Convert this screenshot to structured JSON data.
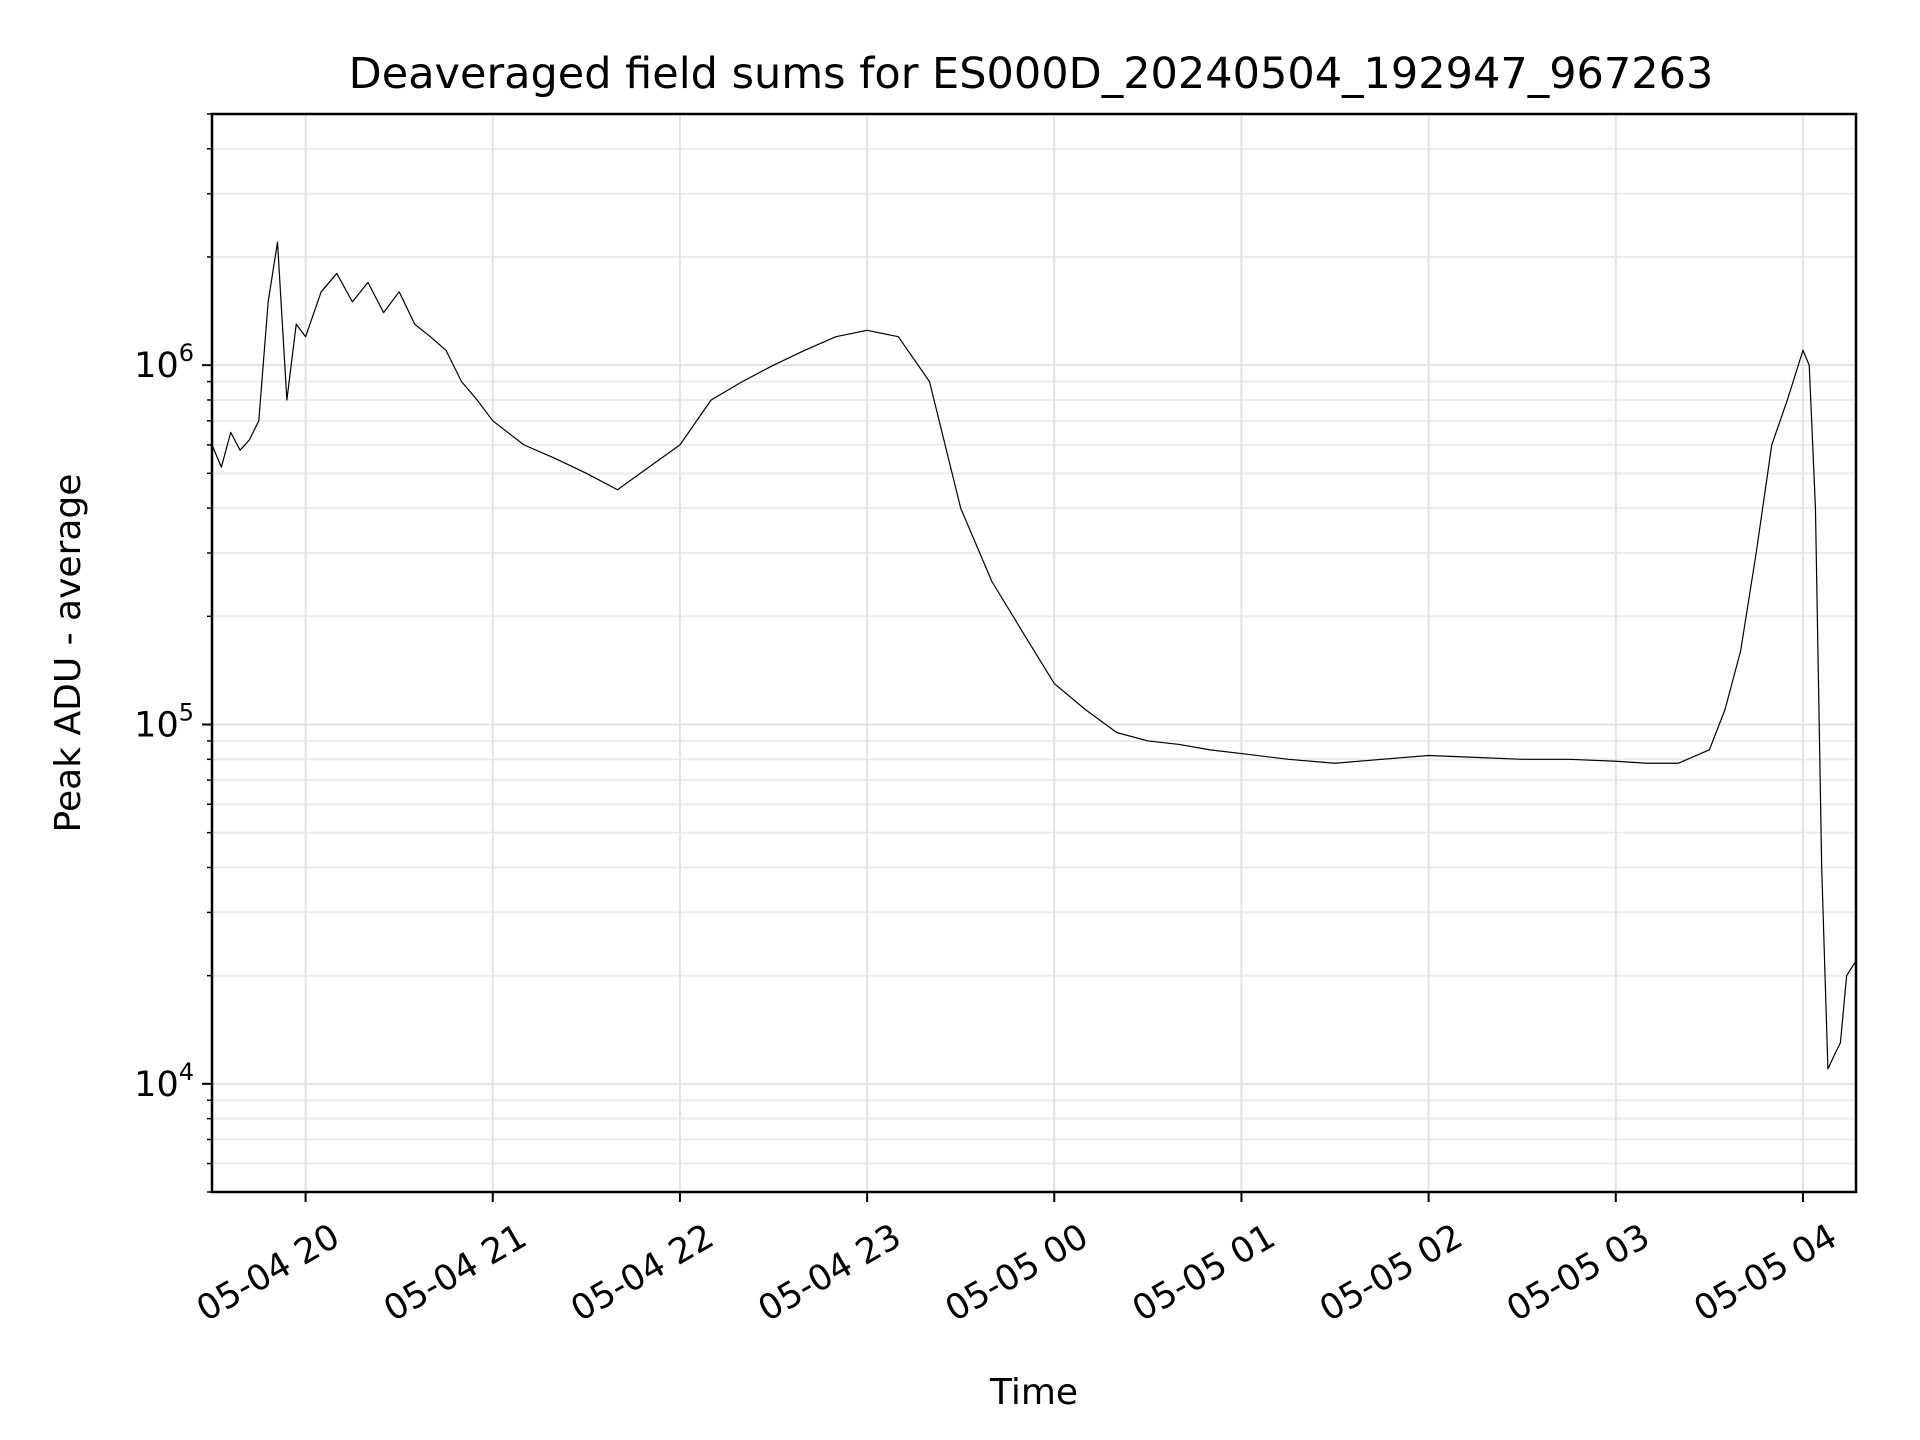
{
  "chart_data": {
    "type": "line",
    "title": "Deaveraged field sums for ES000D_20240504_192947_967263",
    "xlabel": "Time",
    "ylabel": "Peak ADU - average",
    "yscale": "log",
    "xlim": [
      "2024-05-04 19:30",
      "2024-05-05 04:17"
    ],
    "ylim": [
      5000,
      5000000
    ],
    "grid": true,
    "x_ticks": [
      {
        "t": "2024-05-04 20:00",
        "label": "05-04 20"
      },
      {
        "t": "2024-05-04 21:00",
        "label": "05-04 21"
      },
      {
        "t": "2024-05-04 22:00",
        "label": "05-04 22"
      },
      {
        "t": "2024-05-04 23:00",
        "label": "05-04 23"
      },
      {
        "t": "2024-05-05 00:00",
        "label": "05-05 00"
      },
      {
        "t": "2024-05-05 01:00",
        "label": "05-05 01"
      },
      {
        "t": "2024-05-05 02:00",
        "label": "05-05 02"
      },
      {
        "t": "2024-05-05 03:00",
        "label": "05-05 03"
      },
      {
        "t": "2024-05-05 04:00",
        "label": "05-05 04"
      }
    ],
    "y_ticks": [
      {
        "value": 10000,
        "base": "10",
        "exp": "4"
      },
      {
        "value": 100000,
        "base": "10",
        "exp": "5"
      },
      {
        "value": 1000000,
        "base": "10",
        "exp": "6"
      }
    ],
    "line_color": "#000000",
    "series": [
      {
        "x": [
          "2024-05-04 19:30",
          "2024-05-04 19:33",
          "2024-05-04 19:36",
          "2024-05-04 19:39",
          "2024-05-04 19:42",
          "2024-05-04 19:45",
          "2024-05-04 19:48",
          "2024-05-04 19:51",
          "2024-05-04 19:54",
          "2024-05-04 19:57",
          "2024-05-04 20:00",
          "2024-05-04 20:05",
          "2024-05-04 20:10",
          "2024-05-04 20:15",
          "2024-05-04 20:20",
          "2024-05-04 20:25",
          "2024-05-04 20:30",
          "2024-05-04 20:35",
          "2024-05-04 20:40",
          "2024-05-04 20:45",
          "2024-05-04 20:50",
          "2024-05-04 20:55",
          "2024-05-04 21:00",
          "2024-05-04 21:10",
          "2024-05-04 21:20",
          "2024-05-04 21:30",
          "2024-05-04 21:40",
          "2024-05-04 21:50",
          "2024-05-04 22:00",
          "2024-05-04 22:10",
          "2024-05-04 22:20",
          "2024-05-04 22:30",
          "2024-05-04 22:40",
          "2024-05-04 22:50",
          "2024-05-04 23:00",
          "2024-05-04 23:10",
          "2024-05-04 23:20",
          "2024-05-04 23:30",
          "2024-05-04 23:40",
          "2024-05-04 23:50",
          "2024-05-05 00:00",
          "2024-05-05 00:10",
          "2024-05-05 00:20",
          "2024-05-05 00:30",
          "2024-05-05 00:40",
          "2024-05-05 00:50",
          "2024-05-05 01:00",
          "2024-05-05 01:15",
          "2024-05-05 01:30",
          "2024-05-05 01:45",
          "2024-05-05 02:00",
          "2024-05-05 02:15",
          "2024-05-05 02:30",
          "2024-05-05 02:45",
          "2024-05-05 03:00",
          "2024-05-05 03:10",
          "2024-05-05 03:20",
          "2024-05-05 03:30",
          "2024-05-05 03:35",
          "2024-05-05 03:40",
          "2024-05-05 03:45",
          "2024-05-05 03:50",
          "2024-05-05 03:55",
          "2024-05-05 04:00",
          "2024-05-05 04:02",
          "2024-05-05 04:04",
          "2024-05-05 04:06",
          "2024-05-05 04:08",
          "2024-05-05 04:10",
          "2024-05-05 04:12",
          "2024-05-05 04:14",
          "2024-05-05 04:17"
        ],
        "y": [
          600000,
          520000,
          650000,
          580000,
          620000,
          700000,
          1500000,
          2200000,
          800000,
          1300000,
          1200000,
          1600000,
          1800000,
          1500000,
          1700000,
          1400000,
          1600000,
          1300000,
          1200000,
          1100000,
          900000,
          800000,
          700000,
          600000,
          550000,
          500000,
          450000,
          520000,
          600000,
          800000,
          900000,
          1000000,
          1100000,
          1200000,
          1250000,
          1200000,
          900000,
          400000,
          250000,
          180000,
          130000,
          110000,
          95000,
          90000,
          88000,
          85000,
          83000,
          80000,
          78000,
          80000,
          82000,
          81000,
          80000,
          80000,
          79000,
          78000,
          78000,
          85000,
          110000,
          160000,
          300000,
          600000,
          800000,
          1100000,
          1000000,
          400000,
          40000,
          11000,
          12000,
          13000,
          20000,
          22000
        ]
      }
    ]
  }
}
